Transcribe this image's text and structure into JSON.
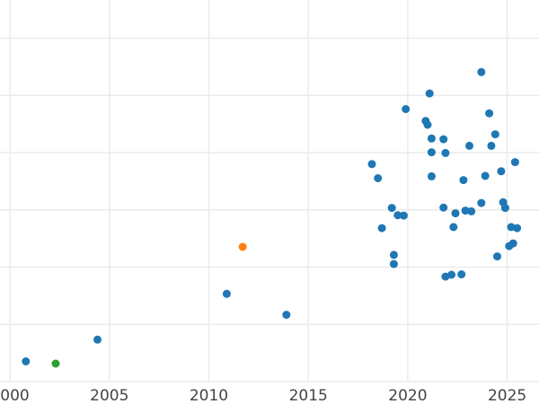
{
  "chart_data": {
    "type": "scatter",
    "title": "",
    "xlabel": "",
    "ylabel": "",
    "xlim": [
      1999.5,
      2026.6
    ],
    "ylim": [
      0,
      100
    ],
    "x_ticks": [
      "2000",
      "2005",
      "2010",
      "2015",
      "2020",
      "2025"
    ],
    "x_tick_values": [
      2000,
      2005,
      2010,
      2015,
      2020,
      2025
    ],
    "y_tick_values": [
      0,
      15,
      30,
      45,
      60,
      75,
      90
    ],
    "y_tick_labels_visible": false,
    "grid": true,
    "legend": "none",
    "series": [
      {
        "color": "#1f77b4",
        "points": [
          [
            2000.8,
            5.3
          ],
          [
            2004.4,
            11.0
          ],
          [
            2010.9,
            23.0
          ],
          [
            2013.9,
            17.5
          ],
          [
            2018.2,
            57.0
          ],
          [
            2018.5,
            53.3
          ],
          [
            2018.7,
            40.2
          ],
          [
            2019.2,
            45.5
          ],
          [
            2019.3,
            33.2
          ],
          [
            2019.3,
            30.8
          ],
          [
            2019.5,
            43.6
          ],
          [
            2019.8,
            43.5
          ],
          [
            2019.9,
            71.4
          ],
          [
            2020.9,
            68.3
          ],
          [
            2021.0,
            67.3
          ],
          [
            2021.1,
            75.5
          ],
          [
            2021.2,
            63.7
          ],
          [
            2021.2,
            60.1
          ],
          [
            2021.2,
            53.8
          ],
          [
            2021.8,
            63.5
          ],
          [
            2021.8,
            45.6
          ],
          [
            2021.9,
            59.9
          ],
          [
            2021.9,
            27.5
          ],
          [
            2022.2,
            28.0
          ],
          [
            2022.3,
            40.5
          ],
          [
            2022.4,
            44.1
          ],
          [
            2022.7,
            28.1
          ],
          [
            2022.8,
            52.8
          ],
          [
            2022.9,
            44.8
          ],
          [
            2023.1,
            61.8
          ],
          [
            2023.2,
            44.6
          ],
          [
            2023.7,
            81.1
          ],
          [
            2023.7,
            46.8
          ],
          [
            2023.9,
            53.9
          ],
          [
            2024.1,
            70.3
          ],
          [
            2024.2,
            61.8
          ],
          [
            2024.4,
            64.8
          ],
          [
            2024.5,
            32.8
          ],
          [
            2024.7,
            55.1
          ],
          [
            2024.8,
            47.0
          ],
          [
            2024.9,
            45.5
          ],
          [
            2025.1,
            35.5
          ],
          [
            2025.2,
            40.5
          ],
          [
            2025.3,
            36.2
          ],
          [
            2025.4,
            57.5
          ],
          [
            2025.5,
            40.2
          ]
        ]
      },
      {
        "color": "#ff7f0e",
        "points": [
          [
            2011.7,
            35.3
          ]
        ]
      },
      {
        "color": "#2ca02c",
        "points": [
          [
            2002.3,
            4.7
          ]
        ]
      }
    ]
  }
}
